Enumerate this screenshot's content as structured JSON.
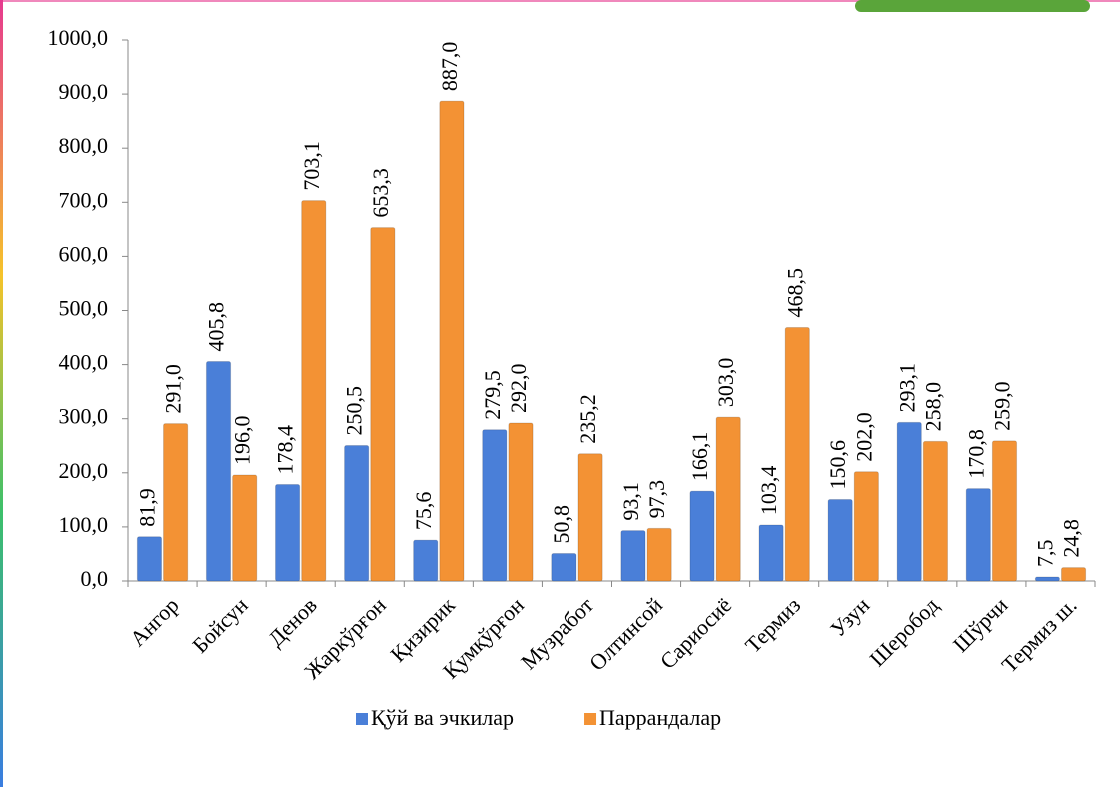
{
  "chart_data": {
    "type": "bar",
    "categories": [
      "Ангор",
      "Бойсун",
      "Денов",
      "Жаркўрғон",
      "Қизирик",
      "Қумқўрғон",
      "Музработ",
      "Олтинсой",
      "Сариосиё",
      "Термиз",
      "Узун",
      "Шеробод",
      "Шўрчи",
      "Термиз ш."
    ],
    "series": [
      {
        "name": "Қўй ва эчкилар",
        "color": "#4a7fd8",
        "values": [
          81.9,
          405.8,
          178.4,
          250.5,
          75.6,
          279.5,
          50.8,
          93.1,
          166.1,
          103.4,
          150.6,
          293.1,
          170.8,
          7.5
        ],
        "value_labels": [
          "81,9",
          "405,8",
          "178,4",
          "250,5",
          "75,6",
          "279,5",
          "50,8",
          "93,1",
          "166,1",
          "103,4",
          "150,6",
          "293,1",
          "170,8",
          "7,5"
        ]
      },
      {
        "name": "Паррандалар",
        "color": "#f39234",
        "values": [
          291.0,
          196.0,
          703.1,
          653.3,
          887.0,
          292.0,
          235.2,
          97.3,
          303.0,
          468.5,
          202.0,
          258.0,
          259.0,
          24.8
        ],
        "value_labels": [
          "291,0",
          "196,0",
          "703,1",
          "653,3",
          "887,0",
          "292,0",
          "235,2",
          "97,3",
          "303,0",
          "468,5",
          "202,0",
          "258,0",
          "259,0",
          "24,8"
        ]
      }
    ],
    "ylim": [
      0,
      1000
    ],
    "yticks": [
      {
        "value": 0,
        "label": "0,0"
      },
      {
        "value": 100,
        "label": "100,0"
      },
      {
        "value": 200,
        "label": "200,0"
      },
      {
        "value": 300,
        "label": "300,0"
      },
      {
        "value": 400,
        "label": "400,0"
      },
      {
        "value": 500,
        "label": "500,0"
      },
      {
        "value": 600,
        "label": "600,0"
      },
      {
        "value": 700,
        "label": "700,0"
      },
      {
        "value": 800,
        "label": "800,0"
      },
      {
        "value": 900,
        "label": "900,0"
      },
      {
        "value": 1000,
        "label": "1000,0"
      }
    ],
    "grid": false,
    "legend": "bottom"
  }
}
